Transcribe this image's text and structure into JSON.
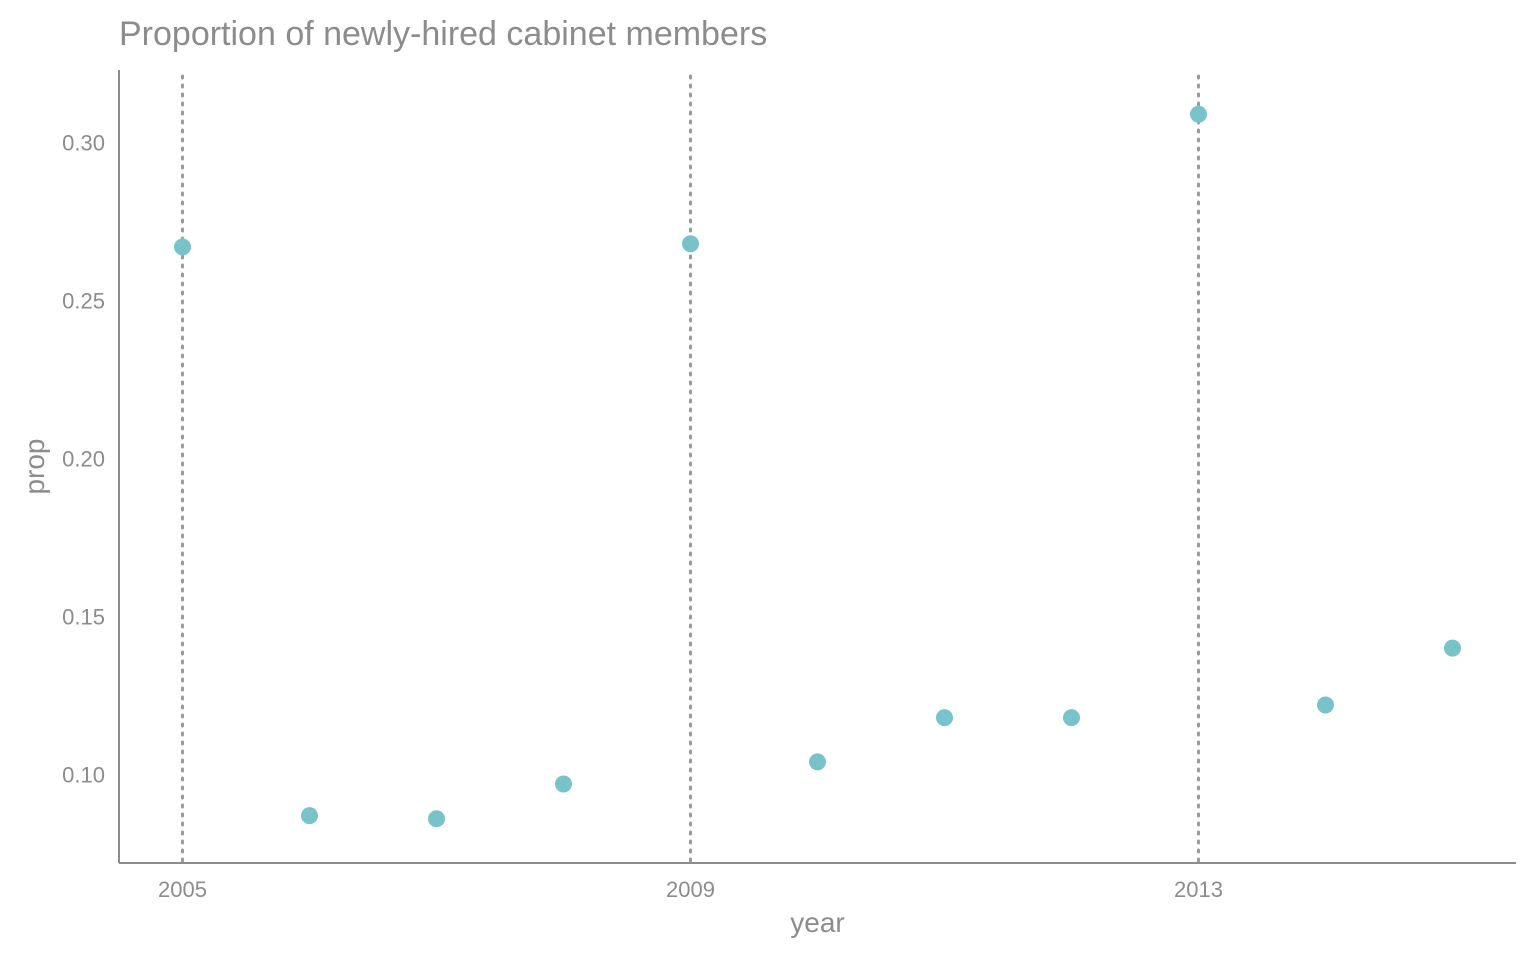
{
  "chart_data": {
    "type": "scatter",
    "title": "Proportion of newly-hired cabinet members",
    "xlabel": "year",
    "ylabel": "prop",
    "x": [
      2005,
      2006,
      2007,
      2008,
      2009,
      2010,
      2011,
      2012,
      2013,
      2014,
      2015
    ],
    "y": [
      0.267,
      0.087,
      0.086,
      0.097,
      0.268,
      0.104,
      0.118,
      0.118,
      0.309,
      0.122,
      0.14
    ],
    "xlim": [
      2004.5,
      2015.5
    ],
    "ylim": [
      0.072,
      0.323
    ],
    "x_ticks": [
      2005,
      2009,
      2013
    ],
    "y_ticks": [
      0.1,
      0.15,
      0.2,
      0.25,
      0.3
    ],
    "y_tick_labels": [
      "0.10",
      "0.15",
      "0.20",
      "0.25",
      "0.30"
    ],
    "vertical_lines": [
      2005,
      2009,
      2013
    ],
    "grid": false,
    "legend": "none",
    "point_color": "#78c2c9",
    "text_color": "#8c8c8c"
  }
}
